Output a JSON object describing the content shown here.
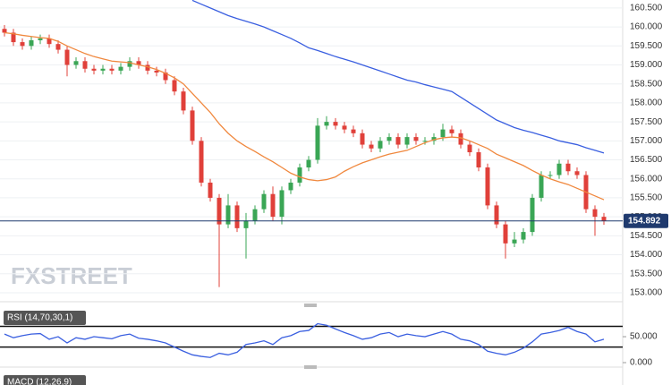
{
  "chart_data": {
    "type": "candlestick",
    "watermark": "FXSTREET",
    "open": [
      159.95,
      159.85,
      159.6,
      159.5,
      159.65,
      159.7,
      159.55,
      159.4,
      159.0,
      159.1,
      158.9,
      158.85,
      158.9,
      158.85,
      158.95,
      159.1,
      159.0,
      158.85,
      158.8,
      158.6,
      158.3,
      157.8,
      157.0,
      155.9,
      155.5,
      154.8,
      155.3,
      154.7,
      154.9,
      155.2,
      155.6,
      155.0,
      155.7,
      155.9,
      156.3,
      156.5,
      157.4,
      157.5,
      157.4,
      157.3,
      157.2,
      156.9,
      156.8,
      157.0,
      157.1,
      156.9,
      157.1,
      157.0,
      157.0,
      157.1,
      157.3,
      157.2,
      156.9,
      156.7,
      156.3,
      155.3,
      154.8,
      154.3,
      154.4,
      154.6,
      155.5,
      156.1,
      156.1,
      156.4,
      156.2,
      156.1,
      155.2,
      155.0
    ],
    "high": [
      160.05,
      159.95,
      159.7,
      159.75,
      159.8,
      159.8,
      159.65,
      159.5,
      159.2,
      159.2,
      159.0,
      159.0,
      159.0,
      159.05,
      159.2,
      159.2,
      159.1,
      158.95,
      158.9,
      158.7,
      158.4,
      157.9,
      157.1,
      156.0,
      155.6,
      155.6,
      155.4,
      155.1,
      155.3,
      155.7,
      155.8,
      155.8,
      156.0,
      156.4,
      156.6,
      157.6,
      157.65,
      157.6,
      157.5,
      157.4,
      157.3,
      157.0,
      157.1,
      157.2,
      157.2,
      157.2,
      157.2,
      157.1,
      157.2,
      157.45,
      157.4,
      157.3,
      157.0,
      156.8,
      156.4,
      155.4,
      154.9,
      154.6,
      154.7,
      155.6,
      156.2,
      156.2,
      156.5,
      156.5,
      156.3,
      156.2,
      155.3,
      155.1
    ],
    "low": [
      159.75,
      159.5,
      159.4,
      159.4,
      159.55,
      159.45,
      159.3,
      158.7,
      158.9,
      158.8,
      158.75,
      158.75,
      158.75,
      158.75,
      158.85,
      158.9,
      158.75,
      158.7,
      158.5,
      158.2,
      157.7,
      156.9,
      155.8,
      155.4,
      153.15,
      154.7,
      154.6,
      153.9,
      154.8,
      155.1,
      154.9,
      154.8,
      155.6,
      155.8,
      156.2,
      156.4,
      157.3,
      157.3,
      157.2,
      157.1,
      156.8,
      156.7,
      156.7,
      156.9,
      156.8,
      156.8,
      156.9,
      156.9,
      156.9,
      157.0,
      157.1,
      156.8,
      156.6,
      156.2,
      155.2,
      154.7,
      153.9,
      154.2,
      154.3,
      154.5,
      155.4,
      156.0,
      156.0,
      156.1,
      156.0,
      155.1,
      154.5,
      154.79
    ],
    "close": [
      159.85,
      159.6,
      159.5,
      159.65,
      159.7,
      159.55,
      159.4,
      159.0,
      159.1,
      158.9,
      158.85,
      158.9,
      158.85,
      158.95,
      159.1,
      159.0,
      158.85,
      158.8,
      158.6,
      158.3,
      157.8,
      157.0,
      155.9,
      155.5,
      154.8,
      155.3,
      154.7,
      154.9,
      155.2,
      155.6,
      155.0,
      155.7,
      155.9,
      156.3,
      156.5,
      157.4,
      157.5,
      157.4,
      157.3,
      157.2,
      156.9,
      156.8,
      157.0,
      157.1,
      156.9,
      157.1,
      157.0,
      157.0,
      157.1,
      157.3,
      157.2,
      156.9,
      156.7,
      156.3,
      155.3,
      154.8,
      154.3,
      154.4,
      154.6,
      155.5,
      156.1,
      156.1,
      156.4,
      156.2,
      156.1,
      155.2,
      155.0,
      154.89
    ],
    "up_color": "#3aa655",
    "down_color": "#e0403a",
    "series": [
      {
        "color": "#f0883e",
        "values": [
          159.85,
          159.82,
          159.78,
          159.75,
          159.72,
          159.7,
          159.62,
          159.5,
          159.4,
          159.3,
          159.22,
          159.16,
          159.1,
          159.08,
          159.06,
          159.0,
          158.95,
          158.88,
          158.78,
          158.66,
          158.5,
          158.25,
          158.0,
          157.75,
          157.45,
          157.2,
          157.0,
          156.85,
          156.72,
          156.58,
          156.45,
          156.3,
          156.15,
          156.05,
          155.98,
          155.95,
          155.98,
          156.05,
          156.2,
          156.32,
          156.42,
          156.5,
          156.58,
          156.65,
          156.7,
          156.75,
          156.85,
          156.95,
          157.03,
          157.08,
          157.1,
          157.08,
          157.0,
          156.9,
          156.8,
          156.65,
          156.55,
          156.45,
          156.35,
          156.22,
          156.1,
          156.0,
          155.92,
          155.85,
          155.75,
          155.65,
          155.55,
          155.45
        ]
      },
      {
        "color": "#3a5fe0",
        "values": [
          null,
          null,
          null,
          null,
          null,
          null,
          null,
          null,
          null,
          null,
          null,
          null,
          null,
          null,
          null,
          null,
          null,
          null,
          null,
          null,
          null,
          160.7,
          160.6,
          160.5,
          160.4,
          160.3,
          160.22,
          160.15,
          160.08,
          160.0,
          159.9,
          159.8,
          159.7,
          159.58,
          159.45,
          159.38,
          159.3,
          159.22,
          159.15,
          159.08,
          159.0,
          158.92,
          158.84,
          158.76,
          158.68,
          158.6,
          158.55,
          158.48,
          158.42,
          158.36,
          158.3,
          158.15,
          158.0,
          157.85,
          157.7,
          157.55,
          157.45,
          157.35,
          157.28,
          157.22,
          157.15,
          157.08,
          157.0,
          156.95,
          156.9,
          156.82,
          156.75,
          156.68
        ]
      }
    ],
    "ylim": [
      152.81,
      160.71
    ],
    "yticks": [
      {
        "value": 153,
        "label": "153.000"
      },
      {
        "value": 153.5,
        "label": "153.500"
      },
      {
        "value": 154,
        "label": "154.000"
      },
      {
        "value": 154.5,
        "label": "154.500"
      },
      {
        "value": 155,
        "label": "155.000"
      },
      {
        "value": 155.5,
        "label": "155.500"
      },
      {
        "value": 156,
        "label": "156.000"
      },
      {
        "value": 156.5,
        "label": "156.500"
      },
      {
        "value": 157,
        "label": "157.000"
      },
      {
        "value": 157.5,
        "label": "157.500"
      },
      {
        "value": 158,
        "label": "158.000"
      },
      {
        "value": 158.5,
        "label": "158.500"
      },
      {
        "value": 159,
        "label": "159.000"
      },
      {
        "value": 159.5,
        "label": "159.500"
      },
      {
        "value": 160,
        "label": "160.000"
      },
      {
        "value": 160.5,
        "label": "160.500"
      }
    ],
    "grid": true,
    "last_price": {
      "value": 154.892,
      "label": "154.892",
      "color": "#1f3a6e"
    },
    "rsi": {
      "title": "RSI (14,70,30,1)",
      "color": "#3a5fe0",
      "values": [
        55,
        48,
        52,
        55,
        56,
        45,
        50,
        38,
        48,
        45,
        50,
        48,
        46,
        52,
        55,
        47,
        45,
        42,
        38,
        30,
        22,
        15,
        12,
        10,
        18,
        15,
        20,
        35,
        38,
        42,
        35,
        48,
        52,
        60,
        62,
        75,
        72,
        65,
        58,
        52,
        45,
        48,
        55,
        58,
        50,
        55,
        52,
        50,
        55,
        60,
        55,
        45,
        42,
        35,
        22,
        18,
        15,
        20,
        28,
        40,
        55,
        58,
        62,
        68,
        60,
        55,
        40,
        45
      ],
      "levels": [
        70,
        30
      ],
      "ylim": [
        -8.6,
        107
      ],
      "yticks": [
        {
          "value": 50,
          "label": "50.000"
        },
        {
          "value": 0,
          "label": "0.000"
        }
      ]
    },
    "macd": {
      "title": "MACD (12,26,9)"
    }
  }
}
